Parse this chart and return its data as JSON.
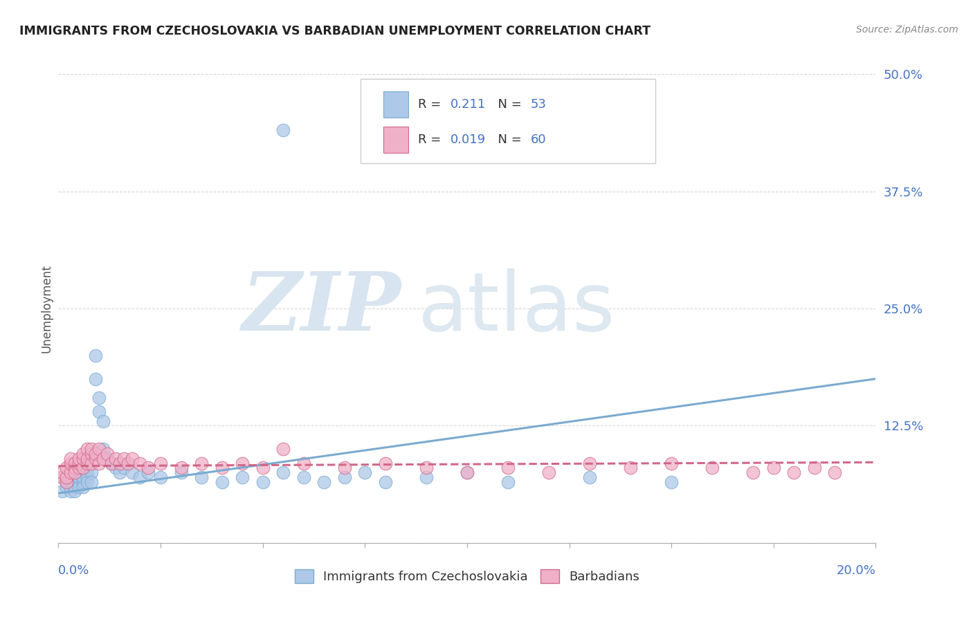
{
  "title": "IMMIGRANTS FROM CZECHOSLOVAKIA VS BARBADIAN UNEMPLOYMENT CORRELATION CHART",
  "source": "Source: ZipAtlas.com",
  "ylabel": "Unemployment",
  "series": [
    {
      "label": "Immigrants from Czechoslovakia",
      "R": 0.211,
      "N": 53,
      "color": "#adc8e8",
      "edge_color": "#7aaad0",
      "points_x": [
        0.001,
        0.001,
        0.002,
        0.002,
        0.003,
        0.003,
        0.003,
        0.004,
        0.004,
        0.004,
        0.005,
        0.005,
        0.005,
        0.006,
        0.006,
        0.006,
        0.007,
        0.007,
        0.007,
        0.008,
        0.008,
        0.009,
        0.009,
        0.01,
        0.01,
        0.011,
        0.011,
        0.012,
        0.013,
        0.014,
        0.015,
        0.016,
        0.018,
        0.02,
        0.022,
        0.025,
        0.03,
        0.035,
        0.04,
        0.045,
        0.05,
        0.055,
        0.06,
        0.065,
        0.07,
        0.075,
        0.08,
        0.09,
        0.1,
        0.11,
        0.13,
        0.15,
        0.055
      ],
      "points_y": [
        0.055,
        0.07,
        0.06,
        0.065,
        0.055,
        0.07,
        0.065,
        0.06,
        0.055,
        0.08,
        0.065,
        0.06,
        0.07,
        0.065,
        0.07,
        0.06,
        0.075,
        0.07,
        0.065,
        0.075,
        0.065,
        0.2,
        0.175,
        0.155,
        0.14,
        0.13,
        0.1,
        0.09,
        0.085,
        0.08,
        0.075,
        0.08,
        0.075,
        0.07,
        0.075,
        0.07,
        0.075,
        0.07,
        0.065,
        0.07,
        0.065,
        0.075,
        0.07,
        0.065,
        0.07,
        0.075,
        0.065,
        0.07,
        0.075,
        0.065,
        0.07,
        0.065,
        0.44
      ],
      "line_x": [
        0.0,
        0.2
      ],
      "line_y": [
        0.053,
        0.175
      ],
      "line_style": "-"
    },
    {
      "label": "Barbadians",
      "R": 0.019,
      "N": 60,
      "color": "#f0b0c8",
      "edge_color": "#d06888",
      "points_x": [
        0.001,
        0.001,
        0.002,
        0.002,
        0.002,
        0.003,
        0.003,
        0.003,
        0.004,
        0.004,
        0.004,
        0.005,
        0.005,
        0.005,
        0.006,
        0.006,
        0.006,
        0.007,
        0.007,
        0.007,
        0.008,
        0.008,
        0.008,
        0.009,
        0.009,
        0.01,
        0.01,
        0.011,
        0.012,
        0.013,
        0.014,
        0.015,
        0.016,
        0.017,
        0.018,
        0.02,
        0.022,
        0.025,
        0.03,
        0.035,
        0.04,
        0.045,
        0.05,
        0.055,
        0.06,
        0.07,
        0.08,
        0.09,
        0.1,
        0.11,
        0.12,
        0.13,
        0.14,
        0.15,
        0.16,
        0.17,
        0.175,
        0.18,
        0.185,
        0.19
      ],
      "points_y": [
        0.07,
        0.075,
        0.065,
        0.07,
        0.08,
        0.075,
        0.085,
        0.09,
        0.08,
        0.085,
        0.075,
        0.08,
        0.085,
        0.09,
        0.08,
        0.09,
        0.095,
        0.085,
        0.09,
        0.1,
        0.085,
        0.095,
        0.1,
        0.09,
        0.095,
        0.085,
        0.1,
        0.09,
        0.095,
        0.085,
        0.09,
        0.085,
        0.09,
        0.085,
        0.09,
        0.085,
        0.08,
        0.085,
        0.08,
        0.085,
        0.08,
        0.085,
        0.08,
        0.1,
        0.085,
        0.08,
        0.085,
        0.08,
        0.075,
        0.08,
        0.075,
        0.085,
        0.08,
        0.085,
        0.08,
        0.075,
        0.08,
        0.075,
        0.08,
        0.075
      ],
      "line_x": [
        0.0,
        0.2
      ],
      "line_y": [
        0.082,
        0.086
      ],
      "line_style": "--"
    }
  ],
  "xlim": [
    0.0,
    0.2
  ],
  "ylim": [
    0.0,
    0.5
  ],
  "yticks": [
    0.0,
    0.125,
    0.25,
    0.375,
    0.5
  ],
  "ytick_labels": [
    "",
    "12.5%",
    "25.0%",
    "37.5%",
    "50.0%"
  ],
  "background_color": "#ffffff",
  "grid_color": "#cccccc",
  "text_color_blue": "#4472c4",
  "text_color_dark": "#333333",
  "legend_R_color": "#4472c4",
  "legend_N_color": "#4472c4",
  "legend_text_color": "#333333",
  "watermark_zip_color": "#d8e4f0",
  "watermark_atlas_color": "#dde8f0"
}
